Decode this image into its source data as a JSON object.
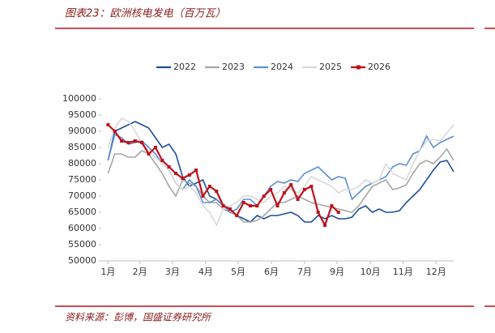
{
  "chart_data": {
    "type": "line",
    "title": "图表23：欧洲核电发电（百万瓦）",
    "source": "资料来源：彭博，国盛证券研究所",
    "x": [
      1,
      2,
      3,
      4,
      5,
      6,
      7,
      8,
      9,
      10,
      11,
      12,
      13,
      14,
      15,
      16,
      17,
      18,
      19,
      20,
      21,
      22,
      23,
      24,
      25,
      26,
      27,
      28,
      29,
      30,
      31,
      32,
      33,
      34,
      35,
      36,
      37,
      38,
      39,
      40,
      41,
      42,
      43,
      44,
      45,
      46,
      47,
      48,
      49,
      50,
      51,
      52
    ],
    "xlim": [
      0,
      52
    ],
    "xticks": [
      {
        "value": 1,
        "label": "1月"
      },
      {
        "value": 5.7,
        "label": "2月"
      },
      {
        "value": 10.5,
        "label": "3月"
      },
      {
        "value": 15.4,
        "label": "4月"
      },
      {
        "value": 20.2,
        "label": "5月"
      },
      {
        "value": 25.1,
        "label": "6月"
      },
      {
        "value": 30,
        "label": "7月"
      },
      {
        "value": 34.8,
        "label": "9月"
      },
      {
        "value": 39.7,
        "label": "10月"
      },
      {
        "value": 44.5,
        "label": "11月"
      },
      {
        "value": 49.4,
        "label": "12月"
      }
    ],
    "ylim": [
      50000,
      100000
    ],
    "yticks": [
      50000,
      55000,
      60000,
      65000,
      70000,
      75000,
      80000,
      85000,
      90000,
      95000,
      100000
    ],
    "series": [
      {
        "name": "2022",
        "color": "#1f4e9c",
        "values": [
          81000,
          90000,
          91000,
          92000,
          93000,
          92000,
          91000,
          88000,
          85000,
          86000,
          83000,
          76000,
          73000,
          74000,
          75000,
          70000,
          69000,
          67000,
          66000,
          64000,
          63000,
          62000,
          64000,
          63000,
          64000,
          64000,
          64500,
          65000,
          64000,
          62000,
          62000,
          64000,
          63000,
          64000,
          63000,
          63000,
          63500,
          66000,
          67000,
          65000,
          66000,
          65000,
          65000,
          65500,
          68000,
          70000,
          72000,
          75000,
          78000,
          80500,
          81000,
          77500
        ]
      },
      {
        "name": "2023",
        "color": "#a6a6a6",
        "values": [
          77000,
          83000,
          83000,
          82000,
          82000,
          84000,
          83000,
          80000,
          77000,
          73000,
          70000,
          75000,
          74000,
          73000,
          70000,
          68000,
          68000,
          66000,
          65000,
          64000,
          62000,
          62000,
          62500,
          64000,
          66000,
          68000,
          68000,
          69000,
          70000,
          69000,
          68000,
          67500,
          67000,
          66500,
          66000,
          65500,
          65000,
          67000,
          70000,
          73000,
          74000,
          75000,
          72000,
          72500,
          73500,
          77000,
          80000,
          81000,
          80000,
          82000,
          84500,
          81000
        ]
      },
      {
        "name": "2024",
        "color": "#5b8fd4",
        "values": [
          81000,
          89000,
          88000,
          86000,
          86500,
          87000,
          85000,
          83000,
          80000,
          78000,
          74000,
          72000,
          75000,
          73000,
          68000,
          68000,
          69000,
          67000,
          65000,
          66000,
          69000,
          69000,
          67000,
          70000,
          73000,
          74500,
          74000,
          75000,
          74500,
          77000,
          78000,
          79000,
          77000,
          75000,
          76000,
          75500,
          69000,
          71000,
          73000,
          74000,
          75000,
          76000,
          79000,
          80000,
          79500,
          83000,
          84000,
          88500,
          85000,
          86500,
          87500,
          88500
        ]
      },
      {
        "name": "2025",
        "color": "#d9d9d9",
        "values": [
          85000,
          91000,
          94000,
          93000,
          90000,
          86000,
          84000,
          82000,
          80000,
          78000,
          74000,
          72000,
          73000,
          71000,
          67000,
          65000,
          61000,
          66000,
          67000,
          68000,
          70000,
          70000,
          69000,
          68000,
          70000,
          71000,
          73000,
          72000,
          71000,
          73000,
          76000,
          75000,
          74000,
          73000,
          71000,
          72000,
          72000,
          73000,
          75000,
          74000,
          75000,
          80000,
          77000,
          76000,
          75000,
          80000,
          84000,
          87000,
          87500,
          87000,
          89500,
          92000
        ]
      },
      {
        "name": "2026",
        "color": "#c0111a",
        "markers": true,
        "values": [
          92000,
          90000,
          87000,
          86500,
          87000,
          86500,
          83000,
          85000,
          81000,
          79000,
          77000,
          75500,
          76500,
          78000,
          70000,
          73000,
          71500,
          67000,
          66000,
          64000,
          68000,
          67000,
          67000,
          70000,
          72000,
          67000,
          71000,
          73500,
          69000,
          72000,
          73000,
          65000,
          61000,
          67000,
          65000,
          null,
          null,
          null,
          null,
          null,
          null,
          null,
          null,
          null,
          null,
          null,
          null,
          null,
          null,
          null,
          null,
          null
        ]
      }
    ]
  }
}
